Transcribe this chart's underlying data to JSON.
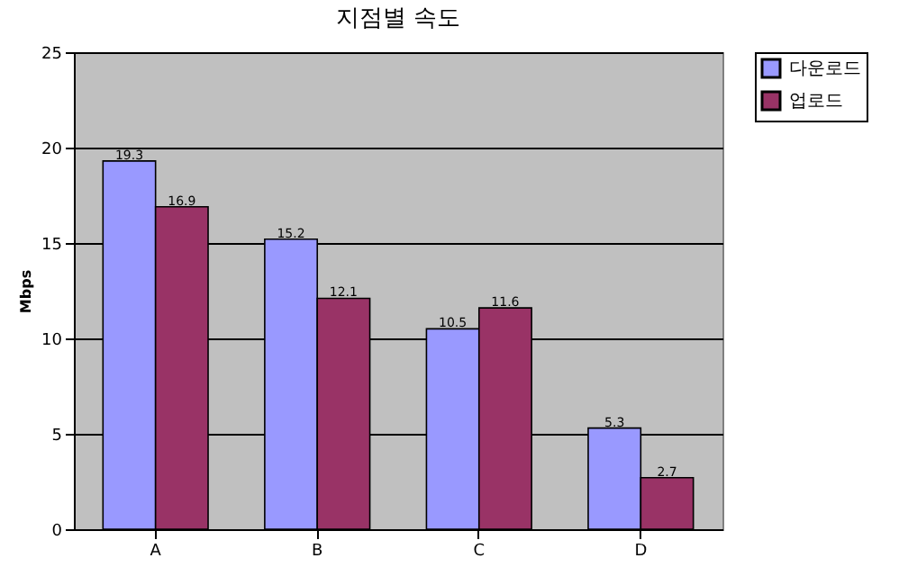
{
  "chart_data": {
    "type": "bar",
    "title": "지점별 속도",
    "ylabel": "Mbps",
    "categories": [
      "A",
      "B",
      "C",
      "D"
    ],
    "series": [
      {
        "name": "다운로드",
        "color": "#9999ff",
        "values": [
          19.3,
          15.2,
          10.5,
          5.3
        ]
      },
      {
        "name": "업로드",
        "color": "#993366",
        "values": [
          16.9,
          12.1,
          11.6,
          2.7
        ]
      }
    ],
    "ylim": [
      0,
      25
    ],
    "yticks": [
      0,
      5,
      10,
      15,
      20,
      25
    ],
    "grid": "y",
    "legend": "right",
    "data_labels": true
  }
}
